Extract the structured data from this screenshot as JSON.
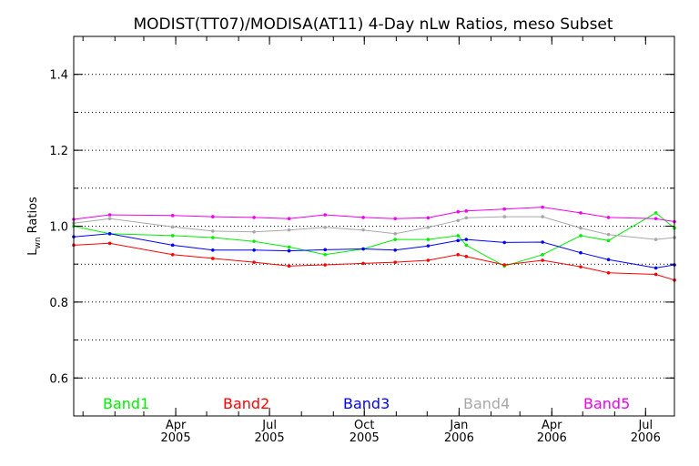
{
  "chart_data": {
    "type": "line",
    "title": "MODIST(TT07)/MODISA(AT11) 4-Day nLw Ratios, meso Subset",
    "ylabel_main": "L",
    "ylabel_sub": "wn",
    "ylabel_rest": " Ratios",
    "ylim": [
      0.5,
      1.5
    ],
    "y_ticks": [
      {
        "value": 0.6,
        "label": "0.6"
      },
      {
        "value": 0.8,
        "label": "0.8"
      },
      {
        "value": 1.0,
        "label": "1.0"
      },
      {
        "value": 1.2,
        "label": "1.2"
      },
      {
        "value": 1.4,
        "label": "1.4"
      }
    ],
    "x_range": [
      "2004-12-23",
      "2006-07-29"
    ],
    "x_ticks": [
      {
        "date": "2005-04-01",
        "month": "Apr",
        "year": "2005"
      },
      {
        "date": "2005-07-01",
        "month": "Jul",
        "year": "2005"
      },
      {
        "date": "2005-10-01",
        "month": "Oct",
        "year": "2005"
      },
      {
        "date": "2006-01-01",
        "month": "Jan",
        "year": "2006"
      },
      {
        "date": "2006-04-01",
        "month": "Apr",
        "year": "2006"
      },
      {
        "date": "2006-07-01",
        "month": "Jul",
        "year": "2006"
      }
    ],
    "x": [
      "2004-12-23",
      "2005-01-27",
      "2005-03-29",
      "2005-05-07",
      "2005-06-16",
      "2005-07-20",
      "2005-08-24",
      "2005-09-30",
      "2005-10-31",
      "2005-12-02",
      "2005-12-31",
      "2006-01-08",
      "2006-02-14",
      "2006-03-23",
      "2006-04-29",
      "2006-05-26",
      "2006-07-11",
      "2006-07-29"
    ],
    "series": [
      {
        "name": "Band1",
        "color": "#00ee00",
        "values": [
          1.0,
          0.98,
          0.975,
          0.97,
          0.96,
          0.945,
          0.925,
          0.94,
          0.965,
          0.965,
          0.975,
          0.95,
          0.895,
          0.925,
          0.975,
          0.962,
          1.035,
          0.995
        ]
      },
      {
        "name": "Band2",
        "color": "#ff0000",
        "values": [
          0.95,
          0.955,
          0.925,
          0.915,
          0.905,
          0.895,
          0.898,
          0.902,
          0.905,
          0.91,
          0.925,
          0.92,
          0.898,
          0.91,
          0.893,
          0.877,
          0.873,
          0.858
        ]
      },
      {
        "name": "Band3",
        "color": "#0000ff",
        "values": [
          0.972,
          0.98,
          0.95,
          0.937,
          0.937,
          0.935,
          0.938,
          0.94,
          0.937,
          0.948,
          0.962,
          0.965,
          0.957,
          0.958,
          0.93,
          0.912,
          0.89,
          0.898
        ]
      },
      {
        "name": "Band4",
        "color": "#a8a8a8",
        "values": [
          1.008,
          1.02,
          0.998,
          0.987,
          0.985,
          0.99,
          0.997,
          0.99,
          0.98,
          0.997,
          1.015,
          1.022,
          1.025,
          1.025,
          0.995,
          0.978,
          0.965,
          0.97
        ]
      },
      {
        "name": "Band5",
        "color": "#ee00ee",
        "values": [
          1.018,
          1.03,
          1.028,
          1.025,
          1.023,
          1.02,
          1.03,
          1.023,
          1.02,
          1.022,
          1.038,
          1.04,
          1.045,
          1.05,
          1.035,
          1.023,
          1.02,
          1.012
        ]
      }
    ],
    "grid": "horizontal dotted",
    "legend": "bottom"
  }
}
